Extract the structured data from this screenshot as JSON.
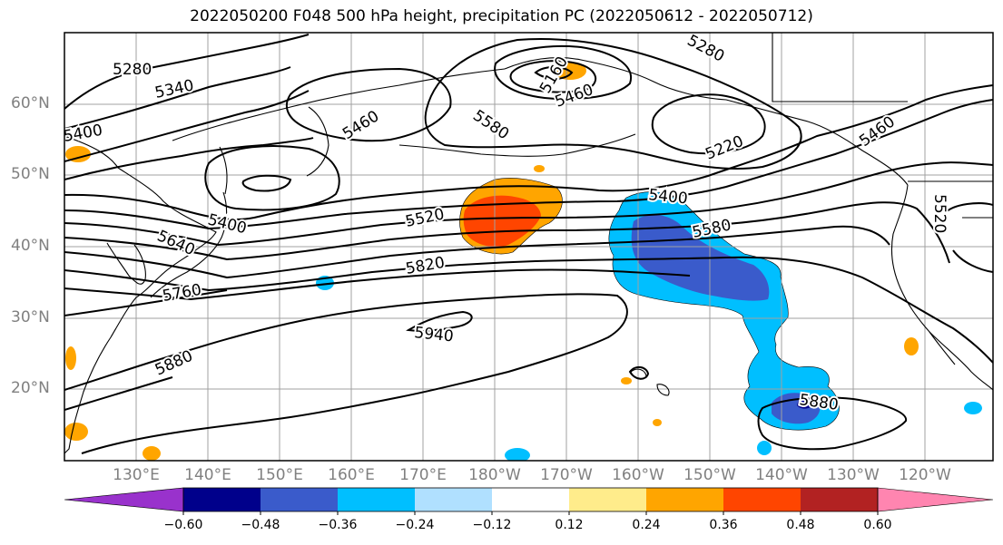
{
  "title": "2022050200 F048 500 hPa height, precipitation PC (2022050612 - 2022050712)",
  "lat_labels": [
    "60°N",
    "50°N",
    "40°N",
    "30°N",
    "20°N"
  ],
  "lon_labels": [
    "130°E",
    "140°E",
    "150°E",
    "160°E",
    "170°E",
    "180°W",
    "170°W",
    "160°W",
    "150°W",
    "140°W",
    "130°W",
    "120°W"
  ],
  "contour_labels": [
    "5280",
    "5340",
    "5400",
    "5460",
    "5520",
    "5580",
    "5640",
    "5760",
    "5820",
    "5880",
    "5940",
    "5160",
    "5220",
    "5400",
    "5460",
    "5520",
    "5580",
    "5280",
    "5880",
    "5460",
    "5400"
  ],
  "colorbar": {
    "colors": [
      "#9932CC",
      "#00008B",
      "#3A5BCB",
      "#00BFFF",
      "#B0E0FF",
      "#FFFFFF",
      "#FFEC8B",
      "#FFA500",
      "#FF4500",
      "#B22222",
      "#FF85B0"
    ],
    "tick_labels": [
      "−0.60",
      "−0.48",
      "−0.36",
      "−0.24",
      "−0.12",
      "0.12",
      "0.24",
      "0.36",
      "0.48",
      "0.60"
    ]
  },
  "precip_colors": {
    "positive_light": "#FFA500",
    "positive_strong": "#FF4500",
    "negative_light": "#00BFFF",
    "negative_strong": "#3A5BCB",
    "negative_faint": "#B0E0FF"
  }
}
